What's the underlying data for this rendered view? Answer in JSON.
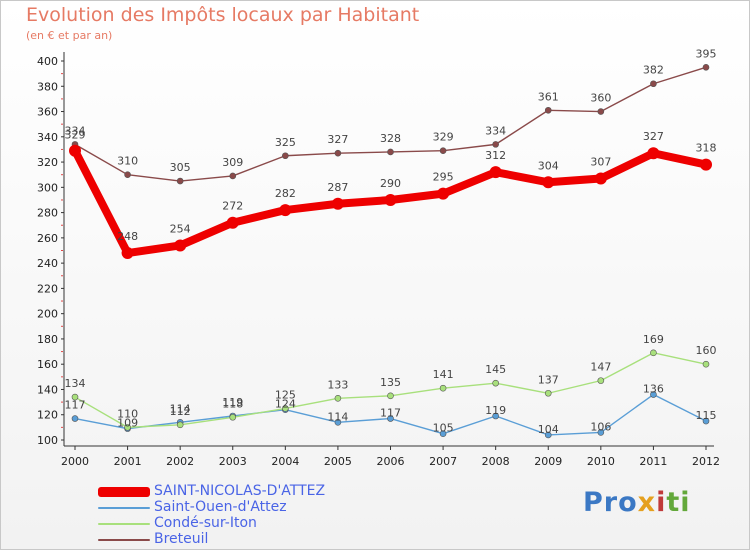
{
  "chart_title": "Evolution des Impôts locaux par Habitant",
  "chart_subtitle": "(en € et par an)",
  "brand": {
    "p1": "Pro",
    "p2": "x",
    "p3": "i",
    "p4": "ti"
  },
  "chart_data": {
    "type": "line",
    "title": "Evolution des Impôts locaux par Habitant",
    "subtitle": "(en € et par an)",
    "xlabel": "",
    "ylabel": "",
    "x": [
      2000,
      2001,
      2002,
      2003,
      2004,
      2005,
      2006,
      2007,
      2008,
      2009,
      2010,
      2011,
      2012
    ],
    "ylim": [
      100,
      400
    ],
    "yticks": [
      100,
      120,
      140,
      160,
      180,
      200,
      220,
      240,
      260,
      280,
      300,
      320,
      340,
      360,
      380,
      400
    ],
    "grid": false,
    "legend_position": "bottom-left",
    "series": [
      {
        "name": "SAINT-NICOLAS-D'ATTEZ",
        "color": "#ee0000",
        "width": 8,
        "values": [
          329,
          248,
          254,
          272,
          282,
          287,
          290,
          295,
          312,
          304,
          307,
          327,
          318
        ]
      },
      {
        "name": "Saint-Ouen-d'Attez",
        "color": "#5a9ed6",
        "width": 1.4,
        "values": [
          117,
          109,
          114,
          119,
          124,
          114,
          117,
          105,
          119,
          104,
          106,
          136,
          115
        ]
      },
      {
        "name": "Condé-sur-Iton",
        "color": "#a8e07c",
        "width": 1.4,
        "values": [
          134,
          110,
          112,
          118,
          125,
          133,
          135,
          141,
          145,
          137,
          147,
          169,
          160
        ]
      },
      {
        "name": "Breteuil",
        "color": "#8a4a4a",
        "width": 1.4,
        "values": [
          334,
          310,
          305,
          309,
          325,
          327,
          328,
          329,
          334,
          361,
          360,
          382,
          395
        ]
      }
    ]
  }
}
